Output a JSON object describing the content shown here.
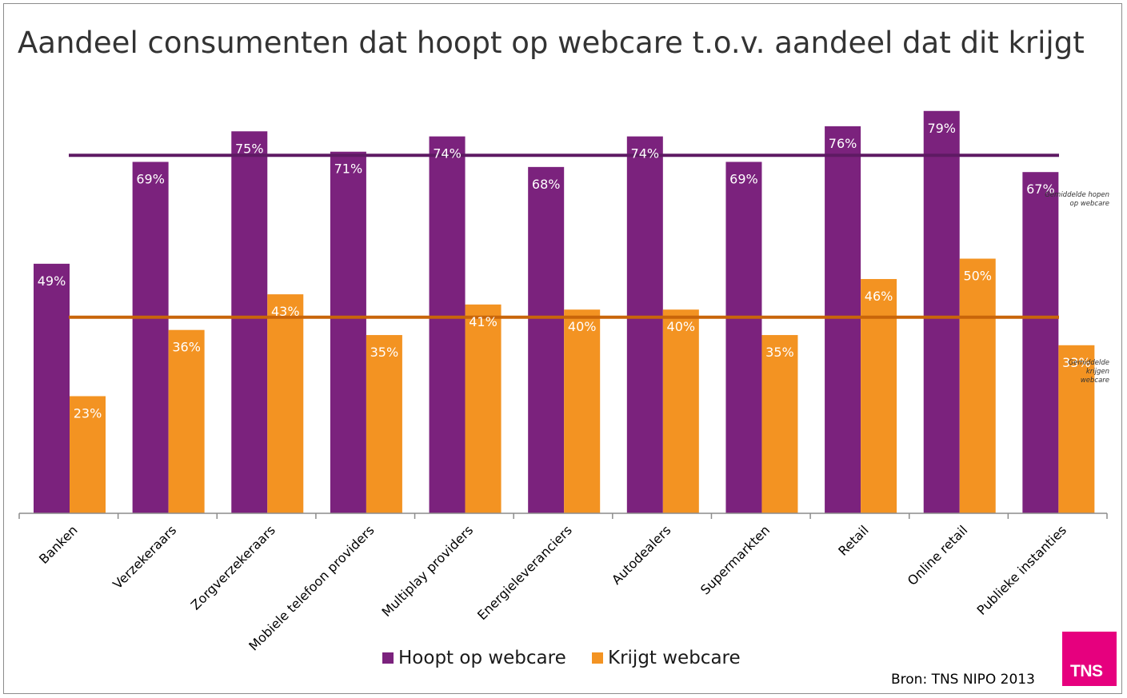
{
  "title": "Aandeel consumenten dat hoopt op webcare t.o.v. aandeel dat dit krijgt",
  "source": "Bron: TNS NIPO 2013",
  "logo_text": "TNS",
  "chart_data": {
    "type": "bar",
    "title": "Aandeel consumenten dat hoopt op webcare t.o.v. aandeel dat dit krijgt",
    "categories": [
      "Banken",
      "Verzekeraars",
      "Zorgverzekeraars",
      "Mobiele telefoon providers",
      "Multiplay providers",
      "Energieleveranciers",
      "Autodealers",
      "Supermarkten",
      "Retail",
      "Online retail",
      "Publieke instanties"
    ],
    "series": [
      {
        "name": "Hoopt op webcare",
        "color": "#7b227d",
        "values": [
          49,
          69,
          75,
          71,
          74,
          68,
          74,
          69,
          76,
          79,
          67
        ],
        "labels": [
          "49%",
          "69%",
          "75%",
          "71%",
          "74%",
          "68%",
          "74%",
          "69%",
          "76%",
          "79%",
          "67%"
        ]
      },
      {
        "name": "Krijgt webcare",
        "color": "#f39322",
        "values": [
          23,
          36,
          43,
          35,
          41,
          40,
          40,
          35,
          46,
          50,
          33
        ],
        "labels": [
          "23%",
          "36%",
          "43%",
          "35%",
          "41%",
          "40%",
          "40%",
          "35%",
          "46%",
          "50%",
          "33%"
        ]
      }
    ],
    "reference_lines": [
      {
        "label_line1": "Gemiddelde hopen",
        "label_line2": "op webcare",
        "value": 70.3,
        "color": "#5e1a63"
      },
      {
        "label_line1": "Gemiddelde",
        "label_line2": "krijgen",
        "label_line3": "webcare",
        "value": 38.5,
        "color": "#c8650a"
      }
    ],
    "ylim": [
      0,
      100
    ],
    "xlabel": "",
    "ylabel": "",
    "grid": false,
    "legend_position": "bottom"
  }
}
